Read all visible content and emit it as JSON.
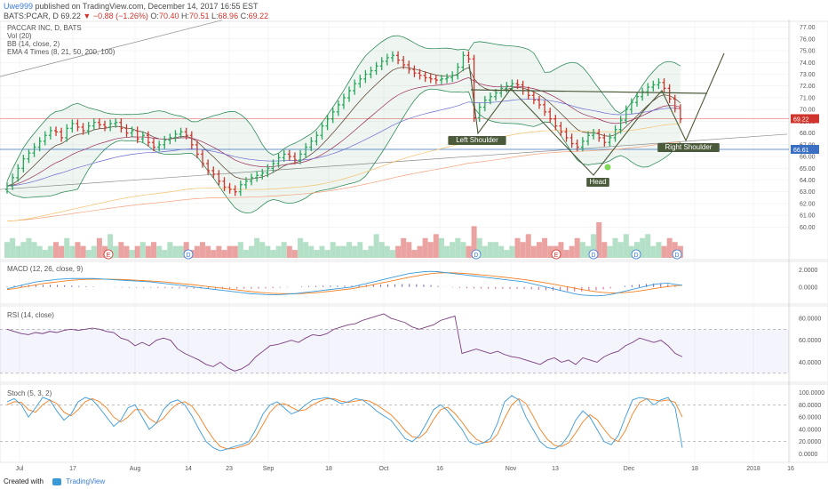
{
  "header": {
    "user": "Uwe999",
    "published": "published on TradingView.com, December 14, 2017 16:55 EST",
    "symbol": "BATS:PCAR, D",
    "last": "69.22",
    "change_arrow": "▼",
    "change": "−0.88 (−1.26%)",
    "o_label": "O:",
    "o": "70.40",
    "h_label": "H:",
    "h": "70.51",
    "l_label": "L:",
    "l": "68.96",
    "c_label": "C:",
    "c": "69.22"
  },
  "legend": {
    "title": "PACCAR INC, D, BATS",
    "vol": "Vol (20)",
    "bb": "BB (14, close, 2)",
    "ema": "EMA 4 Times (8, 21, 50, 200, 100)",
    "macd": "MACD (12, 26, close, 9)",
    "rsi": "RSI (14, close)",
    "stoch": "Stoch (5, 3, 2)"
  },
  "annotations": {
    "left_shoulder": "Left Shoulder",
    "head": "Head",
    "right_shoulder": "Right Shoulder",
    "events": [
      "E",
      "D",
      "D",
      "E",
      "D",
      "D",
      "D"
    ]
  },
  "footer": {
    "created": "Created with",
    "brand": "TradingView"
  },
  "colors": {
    "up": "#26a65b",
    "down": "#d0342c",
    "macd": "#3a9ad9",
    "signal": "#f57f20",
    "rsi": "#7a3b7e",
    "stoch_k": "#3a9ad9",
    "stoch_d": "#f57f20",
    "bb": "#2e8b57",
    "ema100": "#f5c16c",
    "ema200": "#f5a07a"
  },
  "chart_data": [
    {
      "type": "bar",
      "subtype": "ohlc-price",
      "y_ticks": [
        "77.00",
        "76.00",
        "75.00",
        "74.00",
        "73.00",
        "72.00",
        "71.00",
        "70.00",
        "69.00",
        "68.00",
        "67.00",
        "66.00",
        "65.00",
        "64.00",
        "63.00",
        "62.00",
        "61.00",
        "60.00"
      ],
      "ylim": [
        59.5,
        77.5
      ],
      "price_labels": [
        "69.22",
        "66.61"
      ],
      "x_ticks": [
        "Jul",
        "17",
        "Aug",
        "14",
        "23",
        "Sep",
        "18",
        "Oct",
        "16",
        "Nov",
        "13",
        "Dec",
        "18",
        "2018",
        "16"
      ],
      "close": [
        63.5,
        64.2,
        65.0,
        65.8,
        66.3,
        66.8,
        67.3,
        67.8,
        68.2,
        68.1,
        67.6,
        68.4,
        68.8,
        68.5,
        68.2,
        68.6,
        68.9,
        68.7,
        68.5,
        68.8,
        68.9,
        68.4,
        68.0,
        68.2,
        67.5,
        67.8,
        67.2,
        66.8,
        67.0,
        67.4,
        67.6,
        67.9,
        68.1,
        67.8,
        67.0,
        66.2,
        65.4,
        64.8,
        64.5,
        63.9,
        63.4,
        63.2,
        63.0,
        63.6,
        63.9,
        64.2,
        64.4,
        64.6,
        65.0,
        65.4,
        65.9,
        66.2,
        66.0,
        65.7,
        66.2,
        66.8,
        67.3,
        67.8,
        68.6,
        69.2,
        69.8,
        70.4,
        71.0,
        71.6,
        72.2,
        72.6,
        73.0,
        73.3,
        73.7,
        74.1,
        74.4,
        74.6,
        74.2,
        73.8,
        73.4,
        73.1,
        72.9,
        72.7,
        72.6,
        72.5,
        72.6,
        72.7,
        72.9,
        73.6,
        74.6,
        74.3,
        69.3,
        70.2,
        70.8,
        71.1,
        71.4,
        71.8,
        72.0,
        72.2,
        72.1,
        71.6,
        71.2,
        70.8,
        70.4,
        69.8,
        69.2,
        68.6,
        68.1,
        67.6,
        67.1,
        66.8,
        67.3,
        67.8,
        68.0,
        67.6,
        67.2,
        67.6,
        68.3,
        69.1,
        70.0,
        70.6,
        71.1,
        71.5,
        71.9,
        72.1,
        72.3,
        71.8,
        70.9,
        70.1,
        69.2
      ]
    },
    {
      "type": "bar",
      "subtype": "volume",
      "values": [
        4,
        5,
        3,
        4,
        5,
        4,
        3,
        2,
        3,
        4,
        3,
        5,
        3,
        4,
        3,
        2,
        3,
        5,
        3,
        6,
        3,
        4,
        3,
        2,
        3,
        4,
        3,
        4,
        3,
        2,
        4,
        3,
        3,
        4,
        2,
        3,
        4,
        3,
        2,
        3,
        2,
        3,
        3,
        4,
        2,
        3,
        5,
        4,
        3,
        2,
        3,
        4,
        3,
        2,
        5,
        4,
        3,
        2,
        3,
        2,
        4,
        3,
        3,
        4,
        3,
        4,
        2,
        3,
        6,
        4,
        3,
        2,
        3,
        5,
        4,
        2,
        3,
        5,
        4,
        6,
        5,
        3,
        4,
        5,
        4,
        3,
        8,
        5,
        3,
        4,
        4,
        3,
        2,
        3,
        5,
        4,
        6,
        3,
        4,
        5,
        3,
        3,
        4,
        2,
        3,
        5,
        4,
        3,
        6,
        9,
        4,
        3,
        5,
        4,
        6,
        3,
        4,
        5,
        6,
        3,
        4,
        3,
        5,
        4,
        3
      ]
    },
    {
      "type": "line",
      "name": "MACD",
      "y_ticks": [
        "2.0000",
        "0.0000"
      ],
      "ylim": [
        -1.6,
        2.6
      ],
      "macd": [
        -0.2,
        0.0,
        0.2,
        0.4,
        0.6,
        0.7,
        0.8,
        0.9,
        0.95,
        1.0,
        1.0,
        1.0,
        1.0,
        0.95,
        0.9,
        0.85,
        0.8,
        0.75,
        0.7,
        0.65,
        0.6,
        0.5,
        0.4,
        0.3,
        0.2,
        0.1,
        0.0,
        -0.1,
        -0.2,
        -0.3,
        -0.4,
        -0.5,
        -0.6,
        -0.7,
        -0.8,
        -0.85,
        -0.9,
        -0.92,
        -0.9,
        -0.85,
        -0.8,
        -0.7,
        -0.6,
        -0.5,
        -0.4,
        -0.3,
        -0.2,
        -0.1,
        0.0,
        0.2,
        0.4,
        0.6,
        0.8,
        1.0,
        1.2,
        1.4,
        1.6,
        1.7,
        1.8,
        1.85,
        1.8,
        1.7,
        1.6,
        1.5,
        1.4,
        1.3,
        1.2,
        1.1,
        1.0,
        0.9,
        0.8,
        0.7,
        0.6,
        0.4,
        0.2,
        0.0,
        -0.2,
        -0.4,
        -0.6,
        -0.8,
        -0.95,
        -1.0,
        -1.05,
        -1.0,
        -0.9,
        -0.7,
        -0.5,
        -0.3,
        -0.1,
        0.1,
        0.3,
        0.4,
        0.45,
        0.3,
        0.2
      ],
      "signal": [
        -0.3,
        -0.2,
        -0.05,
        0.1,
        0.25,
        0.4,
        0.5,
        0.6,
        0.7,
        0.8,
        0.85,
        0.9,
        0.92,
        0.93,
        0.92,
        0.9,
        0.88,
        0.85,
        0.8,
        0.75,
        0.7,
        0.65,
        0.58,
        0.5,
        0.42,
        0.33,
        0.25,
        0.15,
        0.05,
        -0.05,
        -0.15,
        -0.25,
        -0.35,
        -0.45,
        -0.55,
        -0.62,
        -0.7,
        -0.75,
        -0.78,
        -0.8,
        -0.8,
        -0.78,
        -0.73,
        -0.67,
        -0.6,
        -0.5,
        -0.4,
        -0.3,
        -0.2,
        -0.05,
        0.1,
        0.28,
        0.45,
        0.62,
        0.8,
        0.98,
        1.15,
        1.3,
        1.45,
        1.57,
        1.65,
        1.68,
        1.67,
        1.63,
        1.58,
        1.51,
        1.43,
        1.35,
        1.26,
        1.17,
        1.07,
        0.97,
        0.87,
        0.75,
        0.62,
        0.48,
        0.33,
        0.18,
        0.02,
        -0.14,
        -0.3,
        -0.44,
        -0.56,
        -0.65,
        -0.7,
        -0.7,
        -0.66,
        -0.58,
        -0.48,
        -0.35,
        -0.2,
        -0.07,
        0.05,
        0.15,
        0.2
      ]
    },
    {
      "type": "line",
      "name": "RSI",
      "y_ticks": [
        "80.0000",
        "60.0000",
        "40.0000"
      ],
      "ylim": [
        25,
        88
      ],
      "band": [
        30,
        70
      ],
      "values": [
        70,
        68,
        66,
        65,
        67,
        66,
        68,
        67,
        69,
        70,
        69,
        70,
        71,
        70,
        68,
        67,
        62,
        60,
        55,
        58,
        55,
        60,
        62,
        60,
        52,
        48,
        45,
        42,
        38,
        36,
        40,
        35,
        32,
        34,
        38,
        45,
        50,
        55,
        56,
        58,
        60,
        58,
        62,
        65,
        64,
        66,
        70,
        72,
        74,
        75,
        78,
        80,
        82,
        84,
        80,
        78,
        76,
        72,
        70,
        72,
        74,
        78,
        80,
        82,
        48,
        50,
        52,
        50,
        48,
        50,
        47,
        45,
        44,
        42,
        40,
        38,
        42,
        44,
        40,
        42,
        38,
        44,
        42,
        40,
        45,
        48,
        50,
        55,
        58,
        62,
        60,
        58,
        60,
        55,
        48,
        45
      ]
    },
    {
      "type": "line",
      "name": "Stoch",
      "y_ticks": [
        "100.0000",
        "80.0000",
        "60.0000",
        "40.0000",
        "20.0000",
        "0.0000"
      ],
      "ylim": [
        -8,
        108
      ],
      "band": [
        20,
        80
      ],
      "k": [
        85,
        90,
        80,
        60,
        75,
        92,
        88,
        70,
        55,
        65,
        85,
        92,
        88,
        75,
        60,
        45,
        55,
        75,
        80,
        60,
        40,
        50,
        72,
        84,
        88,
        80,
        62,
        40,
        20,
        10,
        5,
        8,
        12,
        15,
        20,
        40,
        65,
        80,
        85,
        75,
        65,
        70,
        80,
        88,
        90,
        92,
        88,
        82,
        85,
        90,
        88,
        80,
        70,
        62,
        55,
        40,
        25,
        20,
        30,
        50,
        72,
        80,
        70,
        55,
        40,
        20,
        15,
        18,
        25,
        50,
        85,
        95,
        88,
        60,
        40,
        20,
        10,
        8,
        15,
        30,
        55,
        70,
        60,
        40,
        20,
        15,
        30,
        60,
        88,
        92,
        90,
        80,
        88,
        92,
        75,
        10
      ],
      "d": [
        80,
        85,
        84,
        72,
        68,
        80,
        88,
        82,
        68,
        62,
        72,
        85,
        90,
        85,
        75,
        60,
        52,
        60,
        72,
        72,
        58,
        50,
        58,
        72,
        82,
        85,
        78,
        62,
        42,
        25,
        12,
        8,
        9,
        12,
        16,
        28,
        48,
        68,
        80,
        82,
        76,
        70,
        72,
        80,
        86,
        90,
        90,
        86,
        84,
        86,
        88,
        86,
        80,
        72,
        64,
        52,
        38,
        28,
        26,
        36,
        56,
        72,
        76,
        66,
        52,
        36,
        24,
        18,
        20,
        32,
        58,
        80,
        90,
        82,
        62,
        40,
        24,
        14,
        12,
        18,
        34,
        52,
        64,
        56,
        40,
        26,
        20,
        38,
        65,
        84,
        90,
        88,
        86,
        88,
        84,
        60
      ]
    }
  ]
}
